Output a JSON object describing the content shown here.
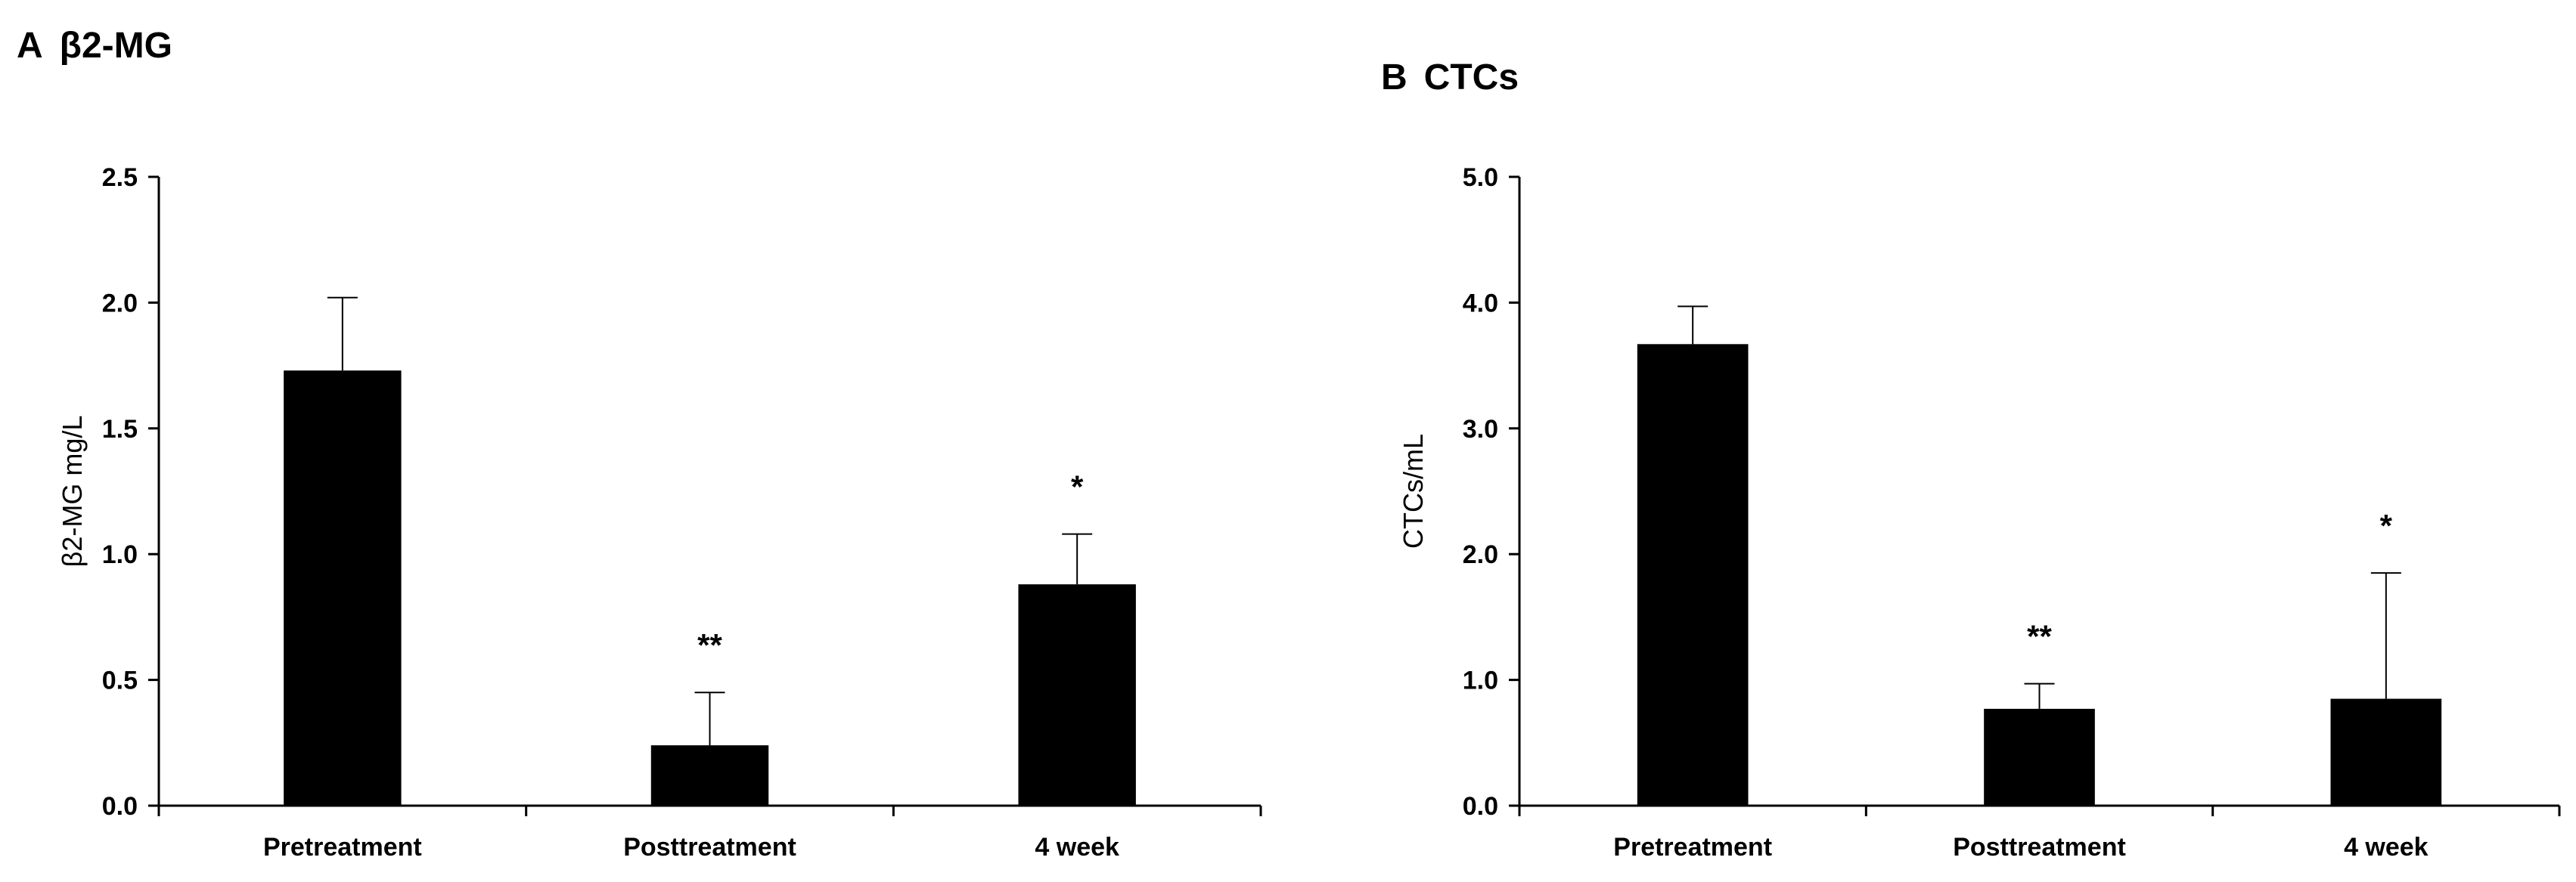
{
  "colors": {
    "bar": "#000000",
    "axis": "#000000",
    "error_bar": "#000000",
    "background": "#ffffff"
  },
  "chart_data": [
    {
      "type": "bar",
      "panel_label": "A",
      "title": "β2-MG",
      "xlabel": "",
      "ylabel": "β2-MG mg/L",
      "ylim": [
        0,
        2.5
      ],
      "yticks": [
        0.0,
        0.5,
        1.0,
        1.5,
        2.0,
        2.5
      ],
      "ytick_labels": [
        "0.0",
        "0.5",
        "1.0",
        "1.5",
        "2.0",
        "2.5"
      ],
      "categories": [
        "Pretreatment",
        "Posttreatment",
        "4 week"
      ],
      "values": [
        1.73,
        0.24,
        0.88
      ],
      "errors": [
        0.29,
        0.21,
        0.2
      ],
      "significance": [
        "",
        "**",
        "*"
      ],
      "grid": false
    },
    {
      "type": "bar",
      "panel_label": "B",
      "title": "CTCs",
      "xlabel": "",
      "ylabel": "CTCs/mL",
      "ylim": [
        0,
        5.0
      ],
      "yticks": [
        0.0,
        1.0,
        2.0,
        3.0,
        4.0,
        5.0
      ],
      "ytick_labels": [
        "0.0",
        "1.0",
        "2.0",
        "3.0",
        "4.0",
        "5.0"
      ],
      "categories": [
        "Pretreatment",
        "Posttreatment",
        "4 week"
      ],
      "values": [
        3.67,
        0.77,
        0.85
      ],
      "errors": [
        0.3,
        0.2,
        1.0
      ],
      "significance": [
        "",
        "**",
        "*"
      ],
      "grid": false
    }
  ]
}
